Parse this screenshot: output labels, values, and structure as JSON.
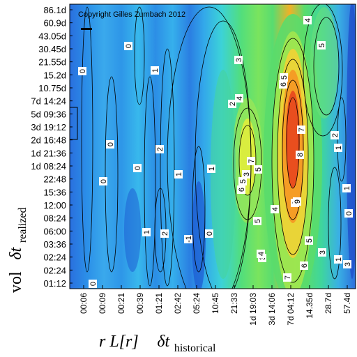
{
  "chart_data": {
    "type": "heatmap",
    "title": "",
    "copyright": "Copyright Gilles Zumbach 2012",
    "ylabel": {
      "prefix": "vol",
      "symbol": "δt",
      "subscript": "realized"
    },
    "xlabel": {
      "function": "r L[r]",
      "symbol": "δt",
      "subscript": "historical"
    },
    "y_ticks": [
      "86.1d",
      "60.9d",
      "43.05d",
      "30.45d",
      "21.55d",
      "15.2d",
      "10.75d",
      "7d 14:24",
      "5d 09:36",
      "3d 19:12",
      "2d 16:48",
      "1d 21:36",
      "1d 08:24",
      "22:48",
      "15:36",
      "12:00",
      "08:24",
      "06:00",
      "03:36",
      "02:24",
      "02:24",
      "01:12"
    ],
    "x_ticks": [
      "00:06",
      "00:09",
      "00:21",
      "00:39",
      "01:21",
      "02:42",
      "05:24",
      "10:45",
      "21:33",
      "1d 19:03",
      "3d 14:06",
      "7d 04:12",
      "14.35d",
      "28.7d",
      "57.4d"
    ],
    "contour_labels": [
      "0",
      "0",
      "0",
      "0",
      "0",
      "0",
      "0",
      "0",
      "1",
      "1",
      "1",
      "1",
      "1",
      "1",
      "1",
      "2",
      "2",
      "2",
      "2",
      "3",
      "3",
      "3",
      "3",
      "3",
      "4",
      "4",
      "4",
      "4",
      "5",
      "5",
      "5",
      "5",
      "5",
      "5",
      "6",
      "6",
      "6",
      "6",
      "7",
      "7",
      "7",
      "8",
      "9",
      "-1"
    ],
    "color_scale": [
      "#1e3cb4",
      "#2a80e6",
      "#30c8f0",
      "#3ce8b4",
      "#46dc6e",
      "#8ce650",
      "#dcf03c",
      "#f5a023",
      "#e6461e"
    ],
    "grid": false,
    "legend": "none"
  }
}
